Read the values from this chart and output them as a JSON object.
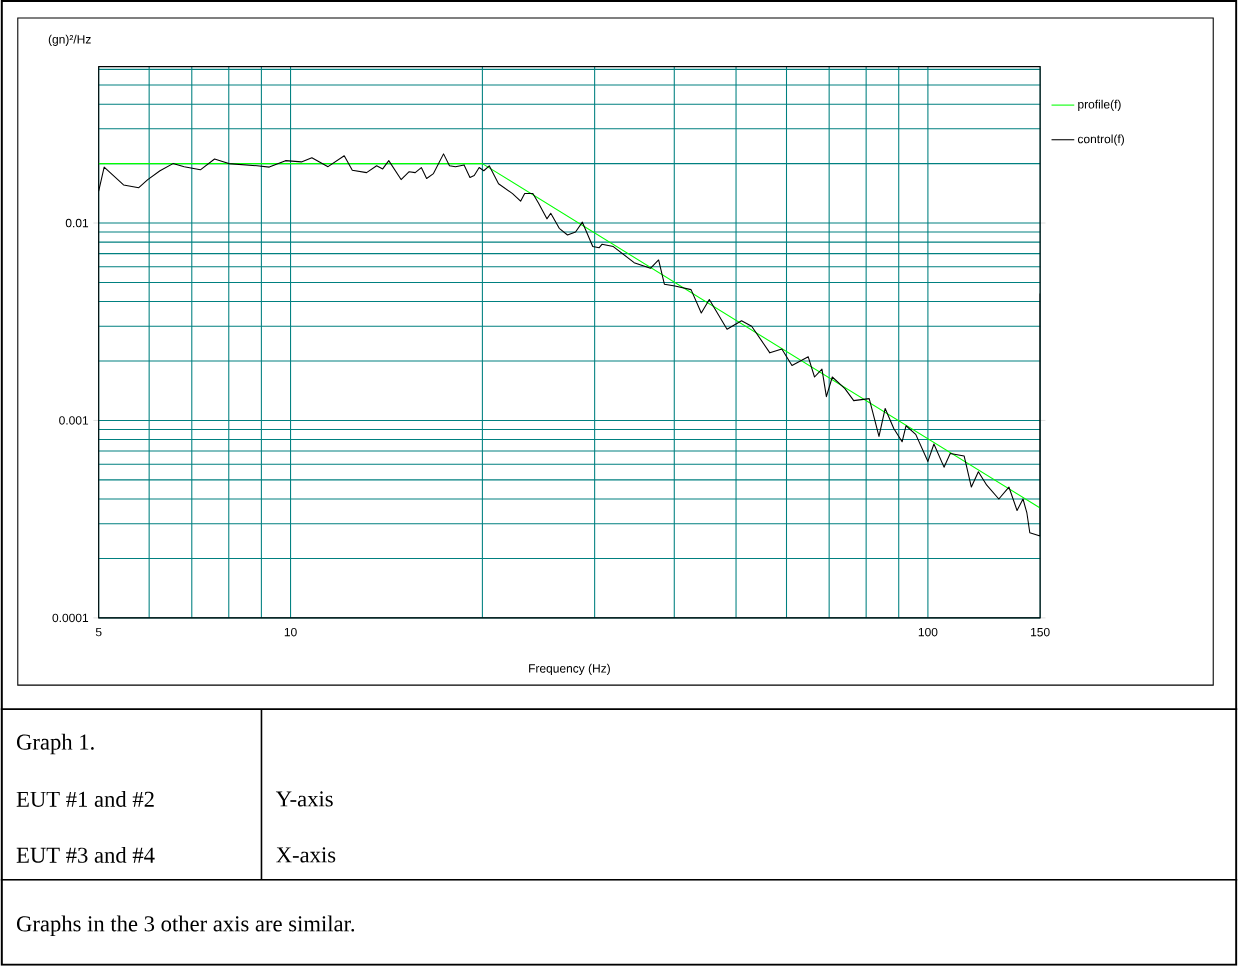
{
  "chart_data": {
    "type": "line",
    "xlabel": "Frequency (Hz)",
    "ylabel": "(gn)²/Hz",
    "log": "xy",
    "grid": true,
    "legend": "right",
    "xlim": [
      5,
      150
    ],
    "xticks": [
      5,
      10,
      100,
      150
    ],
    "ylim": [
      0.0001,
      0.062
    ],
    "yticks": [
      0.0001,
      0.001,
      0.01
    ],
    "series": [
      {
        "name": "profile(f)",
        "color": "#00ff00",
        "x": [
          5,
          20,
          150
        ],
        "values": [
          0.02,
          0.02,
          0.00036
        ]
      },
      {
        "name": "control(f)",
        "color": "#000000",
        "x": [
          5,
          5.1,
          5.47,
          5.78,
          5.97,
          6.24,
          6.54,
          6.81,
          7.22,
          7.6,
          8.0,
          8.86,
          9.26,
          9.82,
          10.4,
          10.8,
          11.45,
          12.14,
          12.5,
          13.16,
          13.65,
          13.95,
          14.26,
          14.91,
          15.35,
          15.69,
          16.04,
          16.35,
          16.76,
          17.38,
          17.76,
          18.15,
          18.72,
          19.12,
          19.42,
          19.77,
          20.1,
          20.5,
          21.2,
          22.3,
          22.96,
          23.3,
          24.0,
          24.5,
          25.25,
          25.6,
          26.4,
          27.2,
          28.0,
          28.7,
          29.8,
          30.5,
          30.8,
          32.1,
          34.6,
          36.7,
          37.8,
          38.6,
          40.1,
          42.5,
          44.1,
          45.4,
          48.4,
          51.0,
          52.9,
          56.5,
          59.0,
          61.2,
          64.9,
          66.4,
          68.2,
          69.3,
          70.8,
          74.1,
          76.5,
          80.9,
          83.8,
          85.7,
          88.4,
          91.1,
          92.4,
          95.7,
          100,
          102.2,
          106,
          108.4,
          114,
          117,
          120,
          123.7,
          129.2,
          134,
          138,
          141,
          143,
          144.5,
          150,
          150
        ],
        "values": [
          0.0145,
          0.0192,
          0.0156,
          0.0151,
          0.0166,
          0.0184,
          0.02,
          0.0193,
          0.0186,
          0.0211,
          0.02,
          0.0195,
          0.0192,
          0.0207,
          0.0204,
          0.0214,
          0.0193,
          0.0219,
          0.0185,
          0.018,
          0.0195,
          0.0188,
          0.0207,
          0.0166,
          0.0182,
          0.018,
          0.0191,
          0.0168,
          0.0178,
          0.0224,
          0.0195,
          0.0193,
          0.0197,
          0.017,
          0.0174,
          0.0191,
          0.0184,
          0.0195,
          0.0158,
          0.0141,
          0.0129,
          0.0141,
          0.0141,
          0.0126,
          0.0105,
          0.0112,
          0.0094,
          0.0087,
          0.009,
          0.0101,
          0.0076,
          0.0075,
          0.0078,
          0.0076,
          0.0063,
          0.0059,
          0.0065,
          0.0049,
          0.0048,
          0.0046,
          0.0035,
          0.0041,
          0.0029,
          0.0032,
          0.003,
          0.0022,
          0.0023,
          0.0019,
          0.0021,
          0.00166,
          0.00182,
          0.00132,
          0.00166,
          0.00145,
          0.00126,
          0.00129,
          0.00083,
          0.00115,
          0.00091,
          0.00078,
          0.00094,
          0.00085,
          0.00062,
          0.00076,
          0.00058,
          0.00068,
          0.00066,
          0.00046,
          0.00055,
          0.00047,
          0.0004,
          0.00046,
          0.00035,
          0.0004,
          0.00034,
          0.00027,
          0.00026,
          0.0044
        ]
      }
    ],
    "annotations": [
      "Graph 1.",
      "EUT #1 and #2",
      "Y-axis",
      "EUT #3 and #4",
      "X-axis",
      "Graphs in the 3 other axis are similar."
    ]
  }
}
